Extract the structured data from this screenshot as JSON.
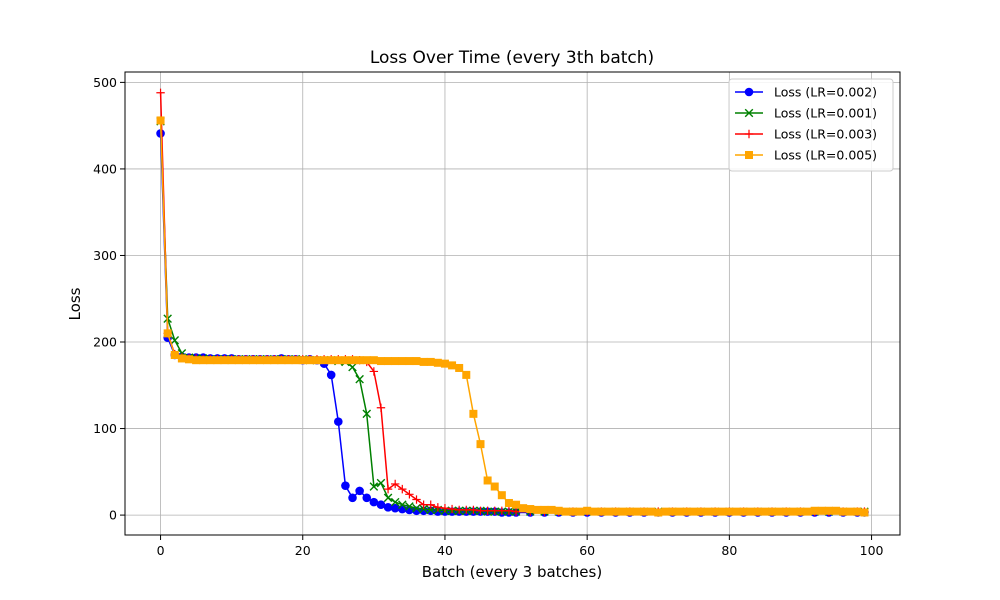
{
  "chart_data": {
    "type": "line",
    "title": "Loss Over Time (every 3th batch)",
    "xlabel": "Batch (every 3 batches)",
    "ylabel": "Loss",
    "xlim": [
      -5,
      104
    ],
    "ylim": [
      -23,
      512
    ],
    "xticks": [
      0,
      20,
      40,
      60,
      80,
      100
    ],
    "yticks": [
      0,
      100,
      200,
      300,
      400,
      500
    ],
    "grid": true,
    "legend_position": "top-right",
    "series": [
      {
        "name": "Loss (LR=0.002)",
        "color": "#0000ff",
        "marker": "circle",
        "x": [
          0,
          1,
          2,
          3,
          4,
          5,
          6,
          7,
          8,
          9,
          10,
          11,
          12,
          13,
          14,
          15,
          16,
          17,
          18,
          19,
          20,
          21,
          22,
          23,
          24,
          25,
          26,
          27,
          28,
          29,
          30,
          31,
          32,
          33,
          34,
          35,
          36,
          37,
          38,
          39,
          40,
          41,
          42,
          43,
          44,
          45,
          46,
          47,
          48,
          49,
          50,
          52,
          54,
          56,
          58,
          60,
          62,
          64,
          66,
          68,
          70,
          72,
          74,
          76,
          78,
          80,
          82,
          84,
          86,
          88,
          90,
          92,
          94,
          96,
          98,
          99
        ],
        "y": [
          441,
          205,
          185,
          183,
          182,
          182,
          182,
          181,
          181,
          181,
          181,
          180,
          180,
          180,
          180,
          180,
          180,
          181,
          180,
          180,
          179,
          180,
          179,
          175,
          162,
          108,
          34,
          20,
          28,
          20,
          15,
          12,
          9,
          8,
          7,
          6,
          5,
          5,
          5,
          4,
          4,
          4,
          4,
          4,
          4,
          4,
          4,
          4,
          3,
          3,
          3,
          3,
          3,
          3,
          3,
          3,
          3,
          3,
          3,
          3,
          3,
          3,
          3,
          3,
          3,
          3,
          3,
          3,
          3,
          3,
          3,
          3,
          3,
          3,
          3,
          3
        ]
      },
      {
        "name": "Loss (LR=0.001)",
        "color": "#008000",
        "marker": "x",
        "x": [
          0,
          1,
          2,
          3,
          4,
          5,
          6,
          7,
          8,
          9,
          10,
          11,
          12,
          13,
          14,
          15,
          16,
          17,
          18,
          19,
          20,
          21,
          22,
          23,
          24,
          25,
          26,
          27,
          28,
          29,
          30,
          31,
          32,
          33,
          34,
          35,
          36,
          37,
          38,
          39,
          40,
          41,
          42,
          43,
          44,
          45,
          46,
          47,
          48,
          49,
          50,
          52,
          54,
          56,
          58,
          60,
          62,
          64,
          66,
          68,
          70,
          72,
          74,
          76,
          78,
          80,
          82,
          84,
          86,
          88,
          90,
          92,
          94,
          96,
          98,
          99
        ],
        "y": [
          455,
          227,
          202,
          187,
          182,
          181,
          181,
          180,
          180,
          180,
          180,
          180,
          180,
          180,
          180,
          180,
          180,
          180,
          180,
          180,
          180,
          179,
          179,
          179,
          179,
          178,
          177,
          171,
          157,
          117,
          33,
          37,
          20,
          15,
          12,
          10,
          8,
          7,
          6,
          6,
          5,
          5,
          5,
          5,
          5,
          5,
          4,
          4,
          4,
          4,
          4,
          4,
          4,
          4,
          4,
          4,
          4,
          4,
          4,
          4,
          4,
          4,
          4,
          4,
          4,
          4,
          4,
          4,
          4,
          4,
          4,
          4,
          4,
          4,
          4,
          4
        ]
      },
      {
        "name": "Loss (LR=0.003)",
        "color": "#ff0000",
        "marker": "plus",
        "x": [
          0,
          1,
          2,
          3,
          4,
          5,
          6,
          7,
          8,
          9,
          10,
          11,
          12,
          13,
          14,
          15,
          16,
          17,
          18,
          19,
          20,
          21,
          22,
          23,
          24,
          25,
          26,
          27,
          28,
          29,
          30,
          31,
          32,
          33,
          34,
          35,
          36,
          37,
          38,
          39,
          40,
          41,
          42,
          43,
          44,
          45,
          46,
          47,
          48,
          49,
          50,
          52,
          54,
          56,
          58,
          60,
          62,
          64,
          66,
          68,
          70,
          72,
          74,
          76,
          78,
          80,
          82,
          84,
          86,
          88,
          90,
          92,
          94,
          96,
          98,
          99
        ],
        "y": [
          488,
          210,
          186,
          182,
          181,
          181,
          180,
          180,
          180,
          180,
          180,
          180,
          180,
          180,
          180,
          180,
          180,
          180,
          180,
          180,
          180,
          180,
          180,
          180,
          180,
          180,
          180,
          180,
          179,
          177,
          166,
          124,
          30,
          36,
          30,
          24,
          18,
          12,
          12,
          9,
          8,
          7,
          6,
          6,
          6,
          5,
          5,
          5,
          5,
          5,
          4,
          4,
          4,
          4,
          4,
          4,
          4,
          4,
          4,
          4,
          4,
          4,
          4,
          4,
          4,
          4,
          4,
          4,
          4,
          4,
          4,
          4,
          4,
          4,
          4,
          4
        ]
      },
      {
        "name": "Loss (LR=0.005)",
        "color": "#ffa500",
        "marker": "square",
        "x": [
          0,
          1,
          2,
          3,
          4,
          5,
          6,
          7,
          8,
          9,
          10,
          11,
          12,
          13,
          14,
          15,
          16,
          17,
          18,
          19,
          20,
          21,
          22,
          23,
          24,
          25,
          26,
          27,
          28,
          29,
          30,
          31,
          32,
          33,
          34,
          35,
          36,
          37,
          38,
          39,
          40,
          41,
          42,
          43,
          44,
          45,
          46,
          47,
          48,
          49,
          50,
          51,
          52,
          53,
          54,
          55,
          56,
          57,
          58,
          59,
          60,
          61,
          62,
          63,
          64,
          65,
          66,
          67,
          68,
          69,
          70,
          71,
          72,
          73,
          74,
          75,
          76,
          77,
          78,
          79,
          80,
          81,
          82,
          83,
          84,
          85,
          86,
          87,
          88,
          89,
          90,
          91,
          92,
          93,
          94,
          95,
          96,
          97,
          98,
          99
        ],
        "y": [
          456,
          210,
          185,
          181,
          180,
          179,
          179,
          179,
          179,
          179,
          179,
          179,
          179,
          179,
          179,
          179,
          179,
          179,
          179,
          179,
          179,
          179,
          179,
          179,
          179,
          179,
          179,
          179,
          179,
          179,
          179,
          178,
          178,
          178,
          178,
          178,
          178,
          177,
          177,
          176,
          175,
          173,
          170,
          162,
          117,
          82,
          40,
          33,
          23,
          14,
          12,
          8,
          7,
          6,
          6,
          6,
          5,
          4,
          4,
          4,
          5,
          4,
          4,
          4,
          4,
          4,
          4,
          4,
          4,
          4,
          3,
          4,
          4,
          4,
          4,
          4,
          4,
          4,
          4,
          4,
          4,
          4,
          4,
          4,
          4,
          4,
          4,
          4,
          4,
          4,
          4,
          4,
          5,
          5,
          5,
          5,
          4,
          4,
          4,
          3
        ]
      }
    ]
  }
}
